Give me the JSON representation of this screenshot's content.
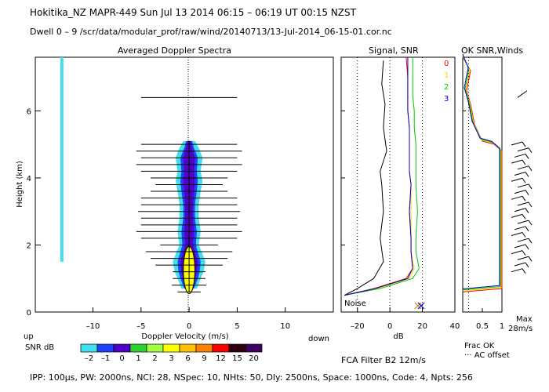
{
  "header": {
    "line1": "Hokitika_NZ   MAPR-449   Sun Jul 13 2014 06:15 – 06:19 UT 00:15 NZST",
    "line2": "Dwell   0 –  9   /scr/data/modular_prof/raw/wind/20140713/13-Jul-2014_06-15-01.cor.nc"
  },
  "panels": {
    "spectra_title": "Averaged Doppler Spectra",
    "signal_title": "Signal, SNR",
    "ok_title": "OK SNR,Winds"
  },
  "axes": {
    "height_label": "Height (km)",
    "height_ticks": [
      "0",
      "2",
      "4",
      "6"
    ],
    "doppler_label": "Doppler Velocity (m/s)",
    "doppler_ticks": [
      "–10",
      "–5",
      "0",
      "5",
      "10"
    ],
    "up_label": "up",
    "down_label": "down",
    "db_label": "dB",
    "db_ticks": [
      "–20",
      "0",
      "20",
      "40"
    ],
    "frac_ticks": [
      "0.5",
      "1"
    ],
    "frac_label": "Frac OK",
    "ac_label": "··· AC offset",
    "noise_label": "Noise",
    "max_label": "Max",
    "max_value": "28m/s"
  },
  "beams": [
    "0",
    "1",
    "2",
    "3"
  ],
  "beam_colors": [
    "#ff0000",
    "#ffd700",
    "#00c800",
    "#0000cc"
  ],
  "snr_legend": {
    "label": "SNR dB",
    "ticks": [
      "–2",
      "–1",
      "0",
      "1",
      "2",
      "3",
      "6",
      "9",
      "12",
      "15",
      "20"
    ],
    "colors": [
      "#40e0f0",
      "#2040ff",
      "#5000c8",
      "#30d030",
      "#a0ff40",
      "#ffff00",
      "#ffc000",
      "#ff8000",
      "#ff0000",
      "#300010",
      "#400060"
    ]
  },
  "footer": {
    "filter": "FCA Filter B2 12m/s",
    "params": "IPP: 100μs,   PW: 2000ns,   NCI: 28,   NSpec: 10,   NHts: 50,   Dly: 2500ns,   Space: 1000ns,   Code: 4,   Npts: 256"
  },
  "chart_data": {
    "type": "line",
    "title": "Averaged Doppler Spectra / Signal, SNR / OK SNR,Winds",
    "ylabel": "Height (km)",
    "ylim": [
      0,
      7.6
    ],
    "doppler_xlim": [
      -16,
      15
    ],
    "db_xlim": [
      -30,
      40
    ],
    "frac_xlim": [
      0,
      1
    ],
    "heights": [
      0.6,
      0.8,
      1.0,
      1.2,
      1.4,
      1.6,
      1.8,
      2.0,
      2.2,
      2.4,
      2.6,
      2.8,
      3.0,
      3.2,
      3.4,
      3.6,
      3.8,
      4.0,
      4.2,
      4.4,
      4.6,
      4.8,
      5.0,
      6.4
    ],
    "doppler_error_halfwidths": [
      1.2,
      1.8,
      1.7,
      1.7,
      3.5,
      4.0,
      4.5,
      3.0,
      5.0,
      5.5,
      5.0,
      5.0,
      5.3,
      5.0,
      5.0,
      4.0,
      3.5,
      4.0,
      5.0,
      5.5,
      5.0,
      5.5,
      5.0,
      5.0
    ],
    "series": [
      {
        "name": "Noise",
        "x": [
          -28,
          -20,
          -10,
          -4,
          -6,
          -4,
          -5,
          -6,
          -2,
          -4,
          -3,
          -5,
          -4
        ],
        "y": [
          0.5,
          0.7,
          1.0,
          1.5,
          2.2,
          3.0,
          3.8,
          4.2,
          4.8,
          5.5,
          6.2,
          6.8,
          7.5
        ]
      },
      {
        "name": "0",
        "x": [
          -28,
          -10,
          10,
          14,
          13,
          13,
          12,
          13,
          12,
          12,
          12,
          11,
          11,
          11,
          10
        ],
        "y": [
          0.5,
          0.7,
          1.0,
          1.3,
          1.8,
          2.2,
          3.0,
          3.8,
          4.2,
          5.0,
          5.5,
          6.0,
          6.5,
          7.0,
          7.6
        ]
      },
      {
        "name": "1",
        "x": [
          -28,
          -8,
          12,
          15,
          13,
          13,
          13,
          13,
          12,
          12,
          12,
          11,
          11,
          11,
          11
        ],
        "y": [
          0.5,
          0.7,
          1.0,
          1.3,
          1.8,
          2.2,
          3.0,
          3.8,
          4.2,
          5.0,
          5.5,
          6.0,
          6.5,
          7.0,
          7.6
        ]
      },
      {
        "name": "2",
        "x": [
          -28,
          -6,
          14,
          18,
          16,
          16,
          17,
          16,
          16,
          16,
          15,
          15,
          14,
          14,
          14
        ],
        "y": [
          0.5,
          0.7,
          1.0,
          1.3,
          1.8,
          2.2,
          3.0,
          3.8,
          4.2,
          5.0,
          5.5,
          6.0,
          6.5,
          7.0,
          7.6
        ]
      },
      {
        "name": "3",
        "x": [
          -28,
          -9,
          11,
          14,
          13,
          13,
          12,
          13,
          12,
          12,
          12,
          11,
          11,
          11,
          11
        ],
        "y": [
          0.5,
          0.7,
          1.0,
          1.3,
          1.8,
          2.2,
          3.0,
          3.8,
          4.2,
          5.0,
          5.5,
          6.0,
          6.5,
          7.0,
          7.6
        ]
      }
    ],
    "frac_ok": {
      "x": [
        0.0,
        1.0,
        1.0,
        0.8,
        0.5,
        0.3,
        0.2,
        0.1,
        0.2,
        0.0
      ],
      "y": [
        0.6,
        0.7,
        4.8,
        5.0,
        5.1,
        5.6,
        6.2,
        6.6,
        7.2,
        7.6
      ]
    }
  }
}
